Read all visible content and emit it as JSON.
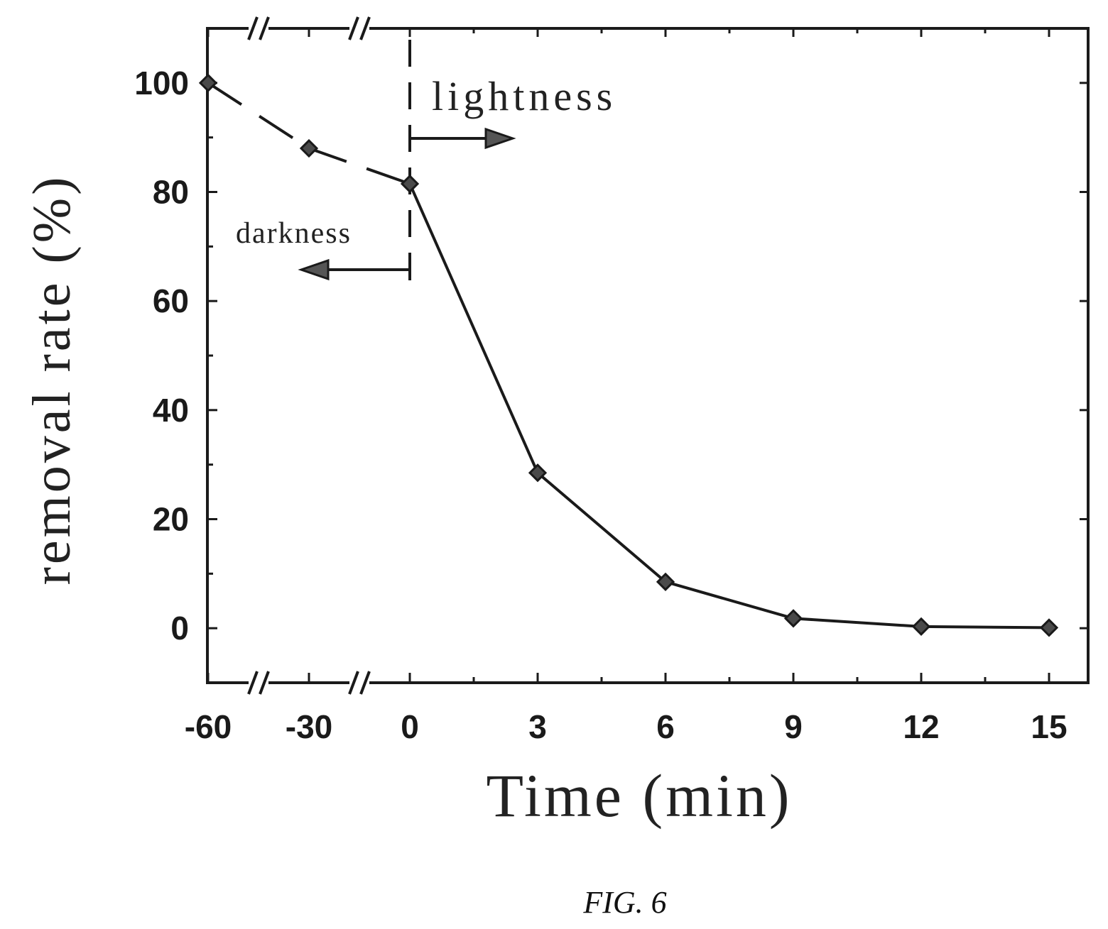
{
  "chart_data": {
    "type": "line",
    "title": "",
    "xlabel": "Time (min)",
    "ylabel": "removal rate (%)",
    "x_ticks": [
      "-60",
      "-30",
      "0",
      "3",
      "6",
      "9",
      "12",
      "15"
    ],
    "y_ticks": [
      "0",
      "20",
      "40",
      "60",
      "80",
      "100"
    ],
    "ylim": [
      -10,
      110
    ],
    "grid": false,
    "axis_break_marks": true,
    "series": [
      {
        "x": [
          "-60",
          "-30",
          "0",
          "3",
          "6",
          "9",
          "12",
          "15"
        ],
        "values": [
          100,
          88,
          81.5,
          28.5,
          8.5,
          1.8,
          0.3,
          0.1
        ]
      }
    ],
    "annotations": {
      "divider_at_x": "0",
      "left_text": "darkness",
      "right_text": "lightness"
    }
  },
  "caption": "FIG. 6"
}
